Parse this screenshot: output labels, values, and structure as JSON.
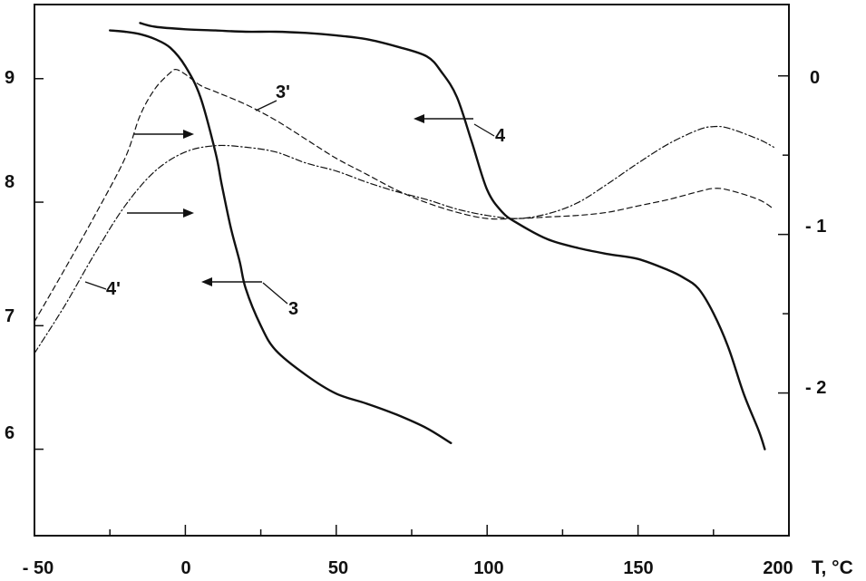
{
  "chart_data": {
    "type": "line",
    "title": "",
    "xlabel": "T, °C",
    "x_ticks": {
      "major": [
        -50,
        0,
        50,
        100,
        150,
        200
      ],
      "major_labels": [
        "- 50",
        "0",
        "50",
        "100",
        "150",
        "200"
      ],
      "minor": [
        -25,
        25,
        75,
        125,
        175
      ]
    },
    "xlim": [
      -50,
      200
    ],
    "y_left": {
      "ylim": [
        5.3,
        9.6
      ],
      "ticks": [
        6,
        7,
        8,
        9
      ],
      "tick_labels": [
        "6",
        "7",
        "8",
        "9"
      ]
    },
    "y_right": {
      "ylim": [
        -2.9,
        0.45
      ],
      "ticks": [
        0,
        -1,
        -2
      ],
      "tick_labels": [
        "0",
        "- 1",
        "- 2"
      ],
      "minor_ticks": [
        -0.5,
        -1.5
      ]
    },
    "grid": false,
    "stroke_color": "#111111",
    "series": [
      {
        "name": "3",
        "axis": "left",
        "style": "solid",
        "x": [
          -25,
          -20,
          -15,
          -10,
          -5,
          0,
          5,
          10,
          12,
          15,
          18,
          20,
          25,
          30,
          40,
          50,
          60,
          70,
          80,
          88
        ],
        "y": [
          9.39,
          9.38,
          9.36,
          9.32,
          9.25,
          9.1,
          8.85,
          8.4,
          8.15,
          7.8,
          7.52,
          7.3,
          7.0,
          6.8,
          6.6,
          6.45,
          6.37,
          6.28,
          6.17,
          6.05
        ]
      },
      {
        "name": "4",
        "axis": "left",
        "style": "solid",
        "x": [
          -15,
          -10,
          0,
          10,
          20,
          30,
          40,
          50,
          60,
          70,
          80,
          85,
          90,
          95,
          100,
          105,
          110,
          120,
          130,
          140,
          150,
          160,
          165,
          170,
          175,
          180,
          185,
          190,
          192
        ],
        "y": [
          9.45,
          9.42,
          9.4,
          9.39,
          9.38,
          9.38,
          9.37,
          9.35,
          9.32,
          9.26,
          9.18,
          9.05,
          8.85,
          8.48,
          8.1,
          7.92,
          7.83,
          7.7,
          7.63,
          7.58,
          7.54,
          7.45,
          7.39,
          7.3,
          7.1,
          6.82,
          6.45,
          6.15,
          6.0
        ]
      },
      {
        "name": "3'",
        "axis": "right",
        "style": "dashed",
        "x": [
          -50,
          -40,
          -30,
          -20,
          -15,
          -10,
          -5,
          -3,
          0,
          5,
          10,
          20,
          30,
          40,
          50,
          60,
          70,
          80,
          90,
          100,
          110,
          120,
          130,
          140,
          150,
          160,
          170,
          175,
          180,
          190,
          195
        ],
        "y": [
          -1.55,
          -1.22,
          -0.88,
          -0.52,
          -0.25,
          -0.08,
          0.02,
          0.04,
          0.01,
          -0.06,
          -0.1,
          -0.18,
          -0.28,
          -0.4,
          -0.52,
          -0.62,
          -0.72,
          -0.8,
          -0.86,
          -0.9,
          -0.9,
          -0.89,
          -0.88,
          -0.86,
          -0.82,
          -0.78,
          -0.73,
          -0.71,
          -0.72,
          -0.78,
          -0.84
        ]
      },
      {
        "name": "4'",
        "axis": "right",
        "style": "dash-dot",
        "x": [
          -50,
          -40,
          -30,
          -20,
          -10,
          0,
          10,
          20,
          30,
          40,
          50,
          60,
          70,
          80,
          90,
          100,
          110,
          120,
          130,
          140,
          150,
          160,
          170,
          175,
          180,
          190,
          195
        ],
        "y": [
          -1.75,
          -1.45,
          -1.12,
          -0.82,
          -0.6,
          -0.48,
          -0.44,
          -0.45,
          -0.48,
          -0.55,
          -0.6,
          -0.67,
          -0.73,
          -0.78,
          -0.84,
          -0.88,
          -0.9,
          -0.87,
          -0.8,
          -0.68,
          -0.55,
          -0.43,
          -0.34,
          -0.32,
          -0.33,
          -0.4,
          -0.45
        ]
      }
    ],
    "annotations": [
      {
        "label": "3",
        "series": "3",
        "arrow": "to-left-axis"
      },
      {
        "label": "4",
        "series": "4",
        "arrow": "to-left-axis"
      },
      {
        "label": "3'",
        "series": "3'",
        "arrow": "to-right-axis"
      },
      {
        "label": "4'",
        "series": "4'",
        "arrow": "to-right-axis"
      }
    ]
  }
}
